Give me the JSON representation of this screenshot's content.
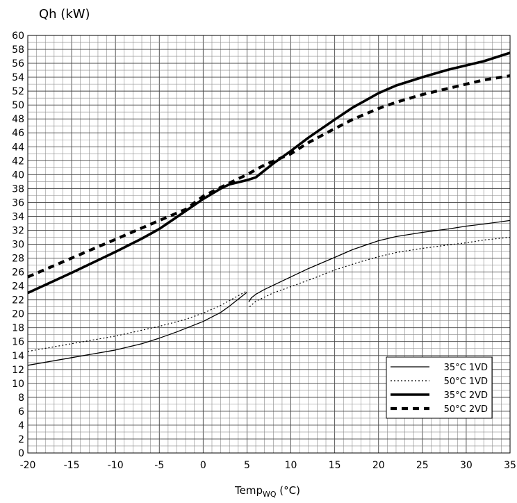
{
  "chart_data": {
    "type": "line",
    "title": "",
    "ylabel": "Qh (kW)",
    "xlabel": "Temp",
    "xlabel_sub": "WQ",
    "xlabel_unit": " (°C)",
    "xlim": [
      -20,
      35
    ],
    "ylim": [
      0,
      60
    ],
    "x_ticks": [
      -20,
      -15,
      -10,
      -5,
      0,
      5,
      10,
      15,
      20,
      25,
      30,
      35
    ],
    "y_ticks": [
      0,
      2,
      4,
      6,
      8,
      10,
      12,
      14,
      16,
      18,
      20,
      22,
      24,
      26,
      28,
      30,
      32,
      34,
      36,
      38,
      40,
      42,
      44,
      46,
      48,
      50,
      52,
      54,
      56,
      58,
      60
    ],
    "grid": true,
    "legend_position": "bottom-right",
    "series": [
      {
        "name": "35°C 1VD",
        "style": "thin-solid",
        "segments": [
          [
            [
              -20,
              12.6
            ],
            [
              -15,
              13.7
            ],
            [
              -10,
              14.8
            ],
            [
              -7,
              15.7
            ],
            [
              -5,
              16.5
            ],
            [
              -3,
              17.4
            ],
            [
              0,
              18.9
            ],
            [
              2,
              20.2
            ],
            [
              3,
              21.1
            ],
            [
              4,
              22.1
            ],
            [
              5,
              23.1
            ]
          ],
          [
            [
              5.2,
              21.7
            ],
            [
              5.5,
              22.3
            ],
            [
              6,
              22.8
            ],
            [
              7,
              23.5
            ],
            [
              8,
              24.1
            ],
            [
              10,
              25.3
            ],
            [
              12,
              26.5
            ],
            [
              15,
              28.1
            ],
            [
              17,
              29.2
            ],
            [
              20,
              30.5
            ],
            [
              22,
              31.1
            ],
            [
              25,
              31.7
            ],
            [
              28,
              32.2
            ],
            [
              30,
              32.6
            ],
            [
              32,
              32.9
            ],
            [
              35,
              33.4
            ]
          ]
        ]
      },
      {
        "name": "50°C 1VD",
        "style": "thin-dotted",
        "segments": [
          [
            [
              -20,
              14.6
            ],
            [
              -15,
              15.7
            ],
            [
              -10,
              16.8
            ],
            [
              -5,
              18.2
            ],
            [
              -2,
              19.2
            ],
            [
              0,
              20.1
            ],
            [
              2,
              21.2
            ],
            [
              3,
              21.9
            ],
            [
              4,
              22.6
            ],
            [
              5,
              23.3
            ]
          ],
          [
            [
              5.3,
              21.0
            ],
            [
              6,
              21.8
            ],
            [
              8,
              23.0
            ],
            [
              10,
              23.9
            ],
            [
              13,
              25.3
            ],
            [
              15,
              26.3
            ],
            [
              18,
              27.5
            ],
            [
              20,
              28.2
            ],
            [
              22,
              28.8
            ],
            [
              25,
              29.4
            ],
            [
              28,
              29.9
            ],
            [
              30,
              30.2
            ],
            [
              32,
              30.6
            ],
            [
              35,
              31.0
            ]
          ]
        ]
      },
      {
        "name": "35°C 2VD",
        "style": "thick-solid",
        "segments": [
          [
            [
              -20,
              23.0
            ],
            [
              -15,
              25.9
            ],
            [
              -10,
              28.9
            ],
            [
              -7,
              30.8
            ],
            [
              -5,
              32.2
            ],
            [
              -3,
              33.9
            ],
            [
              0,
              36.5
            ],
            [
              2,
              38.0
            ],
            [
              3,
              38.6
            ],
            [
              5,
              39.2
            ],
            [
              6,
              39.6
            ],
            [
              7,
              40.6
            ],
            [
              8,
              41.6
            ],
            [
              10,
              43.4
            ],
            [
              12,
              45.3
            ],
            [
              15,
              47.9
            ],
            [
              17,
              49.6
            ],
            [
              19,
              51.0
            ],
            [
              20,
              51.7
            ],
            [
              22,
              52.8
            ],
            [
              25,
              54.0
            ],
            [
              28,
              55.1
            ],
            [
              30,
              55.7
            ],
            [
              32,
              56.3
            ],
            [
              35,
              57.5
            ]
          ]
        ]
      },
      {
        "name": "50°C 2VD",
        "style": "thick-dashed",
        "segments": [
          [
            [
              -20,
              25.3
            ],
            [
              -15,
              28.0
            ],
            [
              -10,
              30.7
            ],
            [
              -5,
              33.4
            ],
            [
              -2,
              35.0
            ],
            [
              0,
              36.9
            ],
            [
              3,
              38.8
            ],
            [
              5,
              40.0
            ],
            [
              7,
              41.4
            ],
            [
              10,
              43.0
            ],
            [
              12,
              44.6
            ],
            [
              15,
              46.6
            ],
            [
              17,
              47.9
            ],
            [
              20,
              49.5
            ],
            [
              22,
              50.4
            ],
            [
              25,
              51.5
            ],
            [
              28,
              52.4
            ],
            [
              30,
              53.0
            ],
            [
              32,
              53.6
            ],
            [
              35,
              54.2
            ]
          ]
        ]
      }
    ]
  }
}
